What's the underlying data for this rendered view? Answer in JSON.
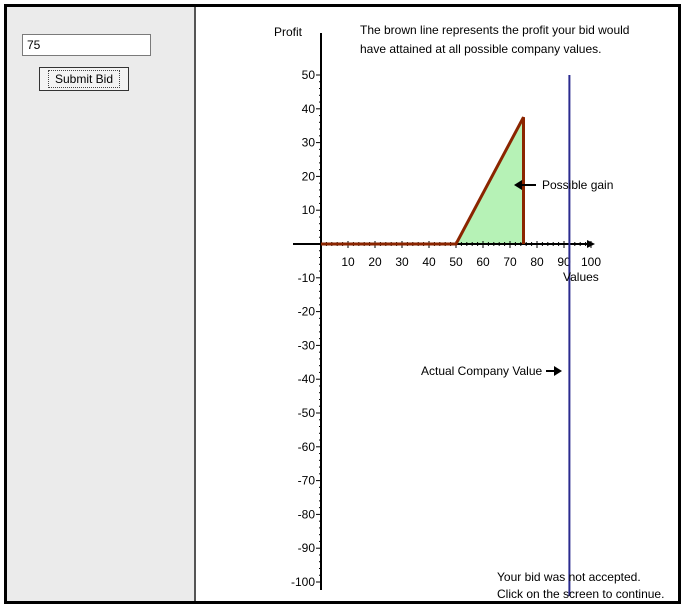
{
  "bid": {
    "value": "75",
    "submit_label": "Submit Bid"
  },
  "chart_data": {
    "type": "line",
    "ylabel": "Profit",
    "xlabel": "Values",
    "note_lines": [
      "The brown line represents the profit your bid would",
      "have attained at all possible company values."
    ],
    "x_ticks": [
      10,
      20,
      30,
      40,
      50,
      60,
      70,
      80,
      90,
      100
    ],
    "y_ticks": [
      50,
      40,
      30,
      20,
      10,
      -10,
      -20,
      -30,
      -40,
      -50,
      -60,
      -70,
      -80,
      -90,
      -100
    ],
    "xlim": [
      0,
      100
    ],
    "ylim": [
      -100,
      50
    ],
    "series": [
      {
        "color": "#8b2500",
        "x": [
          0,
          50,
          75,
          75
        ],
        "y": [
          0,
          0,
          37.5,
          0
        ]
      }
    ],
    "gain_region": {
      "color": "#b6f2b6",
      "x": [
        50,
        75
      ],
      "y_top": [
        0,
        37.5
      ]
    },
    "gain_label": "Possible gain",
    "actual_value": 92,
    "actual_label": "Actual Company Value",
    "status_lines": [
      "Your bid was not accepted.",
      "Click on the screen to continue."
    ]
  }
}
